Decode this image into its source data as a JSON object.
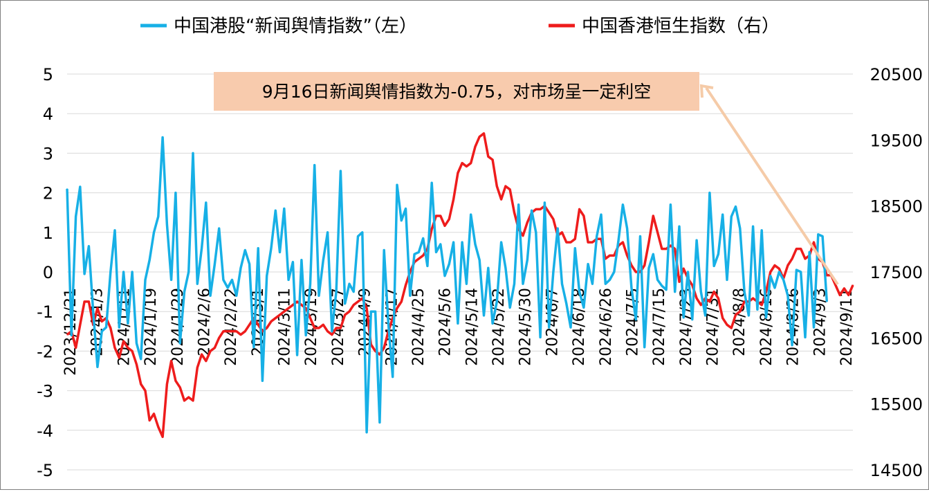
{
  "chart_data": {
    "type": "line",
    "legend": [
      {
        "label": "中国港股“新闻舆情指数”（左）",
        "color": "#17b0e6"
      },
      {
        "label": "中国香港恒生指数（右）",
        "color": "#ee1c1c"
      }
    ],
    "legend_position": "top",
    "grid": true,
    "y_left": {
      "min": -5,
      "max": 5,
      "ticks": [
        "5",
        "4",
        "3",
        "2",
        "1",
        "0",
        "-1",
        "-2",
        "-3",
        "-4",
        "-5"
      ]
    },
    "y_right": {
      "min": 14500,
      "max": 20500,
      "ticks": [
        "20500",
        "19500",
        "18500",
        "17500",
        "16500",
        "15500",
        "14500"
      ]
    },
    "x_tick_labels": [
      "2023/12/21",
      "2024/1/3",
      "2024/1/11",
      "2024/1/19",
      "2024/1/29",
      "2024/2/6",
      "2024/2/22",
      "2024/3/1",
      "2024/3/11",
      "2024/3/19",
      "2024/3/27",
      "2024/4/9",
      "2024/4/17",
      "2024/4/25",
      "2024/5/6",
      "2024/5/14",
      "2024/5/22",
      "2024/5/30",
      "2024/6/7",
      "2024/6/18",
      "2024/6/26",
      "2024/7/5",
      "2024/7/15",
      "2024/7/23",
      "2024/7/31",
      "2024/8/8",
      "2024/8/16",
      "2024/8/26",
      "2024/9/3",
      "2024/9/11"
    ],
    "annotation": "9月16日新闻舆情指数为-0.75，对市场呈一定利空",
    "n_points": 182,
    "series": [
      {
        "name": "中国港股“新闻舆情指数”（左）",
        "axis": "left",
        "color": "#17b0e6",
        "values": [
          2.1,
          -1.6,
          1.4,
          2.15,
          -0.05,
          0.65,
          -1.0,
          -2.4,
          -1.5,
          -1.4,
          0.0,
          1.05,
          -1.4,
          0.0,
          -1.3,
          0.0,
          -1.8,
          -2.2,
          -0.2,
          0.3,
          1.0,
          1.4,
          3.4,
          1.2,
          -0.2,
          2.0,
          -1.8,
          -0.5,
          0.0,
          3.0,
          -0.3,
          0.6,
          1.75,
          -0.6,
          0.2,
          1.1,
          -0.2,
          -0.4,
          -0.2,
          -0.6,
          0.1,
          0.55,
          0.2,
          -1.9,
          0.6,
          -2.75,
          -0.1,
          0.6,
          1.55,
          0.5,
          1.6,
          -0.2,
          0.25,
          -2.1,
          0.3,
          -1.6,
          -0.3,
          2.7,
          -0.6,
          0.3,
          1.0,
          -1.5,
          -0.5,
          2.55,
          -0.8,
          -0.3,
          -0.5,
          0.9,
          1.0,
          -4.05,
          -1.0,
          -1.0,
          -3.8,
          0.55,
          -1.3,
          -2.65,
          2.2,
          1.3,
          1.6,
          -0.6,
          0.45,
          0.5,
          0.85,
          0.15,
          2.25,
          0.5,
          0.7,
          -0.1,
          0.2,
          0.75,
          -1.3,
          0.75,
          -0.3,
          1.45,
          0.7,
          0.3,
          -1.1,
          0.1,
          -1.3,
          -0.75,
          0.75,
          0.1,
          -0.9,
          -0.3,
          1.7,
          -0.3,
          0.3,
          1.55,
          1.0,
          -1.65,
          1.75,
          -1.4,
          0.0,
          1.1,
          -0.3,
          -0.8,
          -1.4,
          0.6,
          -0.5,
          -0.9,
          0.2,
          -0.3,
          0.9,
          1.45,
          -0.3,
          -0.2,
          0.0,
          0.8,
          1.7,
          1.1,
          -0.4,
          -1.2,
          0.9,
          -1.9,
          0.1,
          0.45,
          -0.2,
          -0.35,
          -0.45,
          1.7,
          -0.5,
          1.15,
          -1.15,
          0.0,
          -1.2,
          0.8,
          -0.5,
          -1.1,
          2.0,
          0.15,
          0.45,
          1.45,
          -0.2,
          1.4,
          1.65,
          1.1,
          -0.5,
          -1.1,
          1.15,
          -0.95,
          1.05,
          -1.15,
          -0.1,
          -0.4,
          0.0,
          -0.2,
          -0.6,
          -1.85,
          0.05,
          0.0,
          -1.65,
          0.5,
          -1.4,
          0.95,
          0.9,
          -0.75
        ]
      },
      {
        "name": "中国香港恒生指数（右）",
        "axis": "right",
        "color": "#ee1c1c",
        "values": [
          16550,
          16600,
          16350,
          16700,
          17050,
          17050,
          16700,
          16950,
          16750,
          16800,
          16650,
          16350,
          16200,
          16450,
          16350,
          16300,
          16100,
          15800,
          15700,
          15250,
          15350,
          15150,
          15000,
          15800,
          16150,
          15850,
          15750,
          15550,
          15600,
          15550,
          16050,
          16250,
          16150,
          16300,
          16350,
          16500,
          16600,
          16600,
          16600,
          16600,
          16550,
          16600,
          16700,
          16800,
          16700,
          16600,
          16650,
          16750,
          16800,
          16850,
          16900,
          16950,
          17000,
          17050,
          17000,
          16950,
          16800,
          16650,
          16650,
          16700,
          16600,
          16550,
          16650,
          16650,
          16850,
          16900,
          17000,
          17050,
          17100,
          16950,
          16400,
          16300,
          16250,
          16350,
          16600,
          16800,
          16950,
          17050,
          17300,
          17500,
          17650,
          17700,
          17750,
          17850,
          18150,
          18350,
          18350,
          18200,
          18300,
          18600,
          19000,
          19150,
          19100,
          19150,
          19400,
          19550,
          19600,
          19250,
          19200,
          18800,
          18600,
          18800,
          18750,
          18400,
          18150,
          18050,
          18250,
          18400,
          18450,
          18450,
          18500,
          18400,
          18300,
          18050,
          18100,
          17950,
          17950,
          18000,
          18450,
          18350,
          17950,
          17950,
          18000,
          18000,
          17700,
          17750,
          17750,
          17900,
          17950,
          17750,
          17600,
          17500,
          17500,
          17600,
          17950,
          18350,
          18100,
          17850,
          17850,
          17900,
          17850,
          17350,
          17550,
          17400,
          17300,
          17100,
          17000,
          17100,
          17050,
          17200,
          17100,
          16800,
          16700,
          16650,
          16850,
          16900,
          17050,
          17050,
          17100,
          17050,
          17000,
          17200,
          17500,
          17600,
          17550,
          17400,
          17600,
          17700,
          17850,
          17850,
          17700,
          17750,
          17950,
          17700,
          17650,
          17450,
          17450,
          17300,
          17150,
          17250,
          17150,
          17300
        ]
      }
    ]
  }
}
